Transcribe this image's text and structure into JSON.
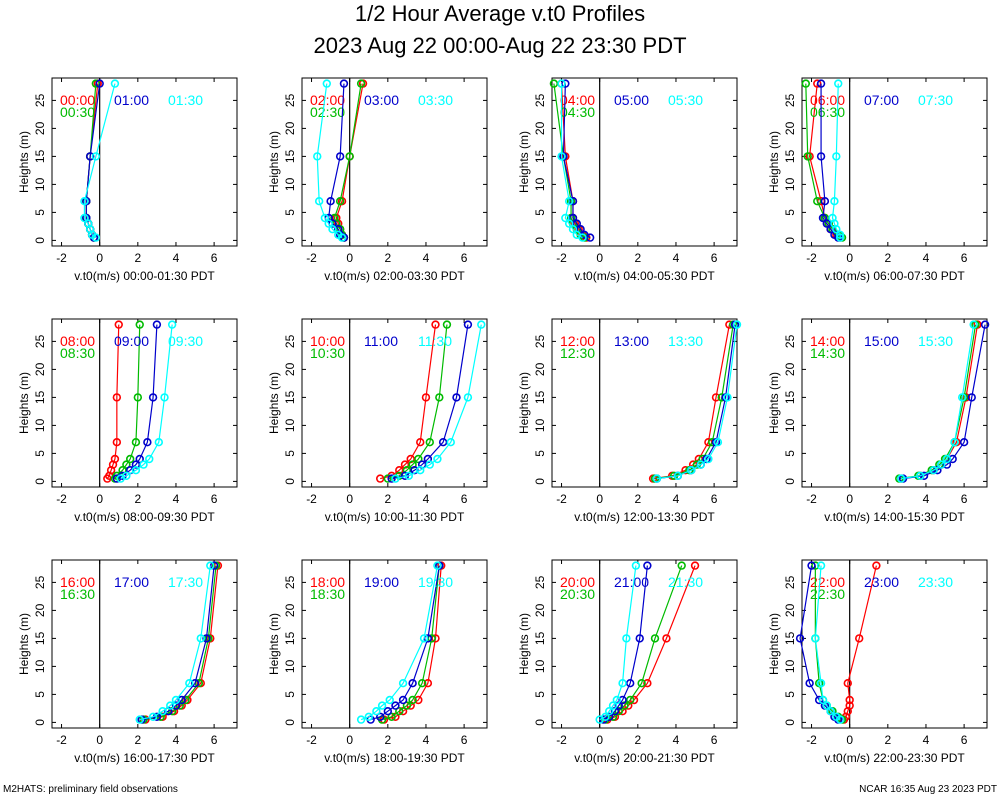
{
  "title": "1/2 Hour Average v.t0 Profiles",
  "subtitle": "2023 Aug 22 00:00-Aug 22 23:30 PDT",
  "footer_left": "M2HATS: preliminary field observations",
  "footer_right": "NCAR 16:35 Aug 23 2023 PDT",
  "colors": {
    "s1": "#ff0000",
    "s2": "#00bb00",
    "s3": "#0000cc",
    "s4": "#00ffff",
    "axis": "#000000"
  },
  "chart_data": [
    {
      "type": "line",
      "xlabel": "v.t0(m/s) 00:00-01:30 PDT",
      "ylabel": "Heights (m)",
      "xlim": [
        -2.5,
        7.2
      ],
      "ylim": [
        -1,
        29
      ],
      "xticks": [
        "-2",
        "0",
        "2",
        "4",
        "6"
      ],
      "yticks": [
        "0",
        "5",
        "10",
        "15",
        "20",
        "25"
      ],
      "heights": [
        0.5,
        1,
        2,
        3,
        4,
        7,
        15,
        28
      ],
      "series": [
        {
          "name": "00:00",
          "values": [
            -0.3,
            -0.4,
            -0.5,
            -0.6,
            -0.7,
            -0.7,
            -0.5,
            -0.1
          ]
        },
        {
          "name": "00:30",
          "values": [
            -0.3,
            -0.4,
            -0.5,
            -0.6,
            -0.7,
            -0.7,
            -0.5,
            -0.2
          ]
        },
        {
          "name": "01:00",
          "values": [
            -0.3,
            -0.4,
            -0.5,
            -0.6,
            -0.7,
            -0.7,
            -0.5,
            0.0
          ]
        },
        {
          "name": "01:30",
          "values": [
            -0.2,
            -0.4,
            -0.5,
            -0.6,
            -0.8,
            -0.8,
            -0.2,
            0.8
          ]
        }
      ]
    },
    {
      "type": "line",
      "xlabel": "v.t0(m/s) 02:00-03:30 PDT",
      "ylabel": "Heights (m)",
      "xlim": [
        -2.5,
        7.2
      ],
      "ylim": [
        -1,
        29
      ],
      "xticks": [
        "-2",
        "0",
        "2",
        "4",
        "6"
      ],
      "yticks": [
        "0",
        "5",
        "10",
        "15",
        "20",
        "25"
      ],
      "heights": [
        0.5,
        1,
        2,
        3,
        4,
        7,
        15,
        28
      ],
      "series": [
        {
          "name": "02:00",
          "values": [
            -0.3,
            -0.4,
            -0.5,
            -0.6,
            -0.7,
            -0.4,
            0.0,
            0.7
          ]
        },
        {
          "name": "02:30",
          "values": [
            -0.3,
            -0.4,
            -0.5,
            -0.7,
            -0.8,
            -0.5,
            0.0,
            0.6
          ]
        },
        {
          "name": "03:00",
          "values": [
            -0.3,
            -0.5,
            -0.6,
            -0.9,
            -1.1,
            -1.0,
            -0.5,
            -0.3
          ]
        },
        {
          "name": "03:30",
          "values": [
            -0.4,
            -0.6,
            -0.9,
            -1.1,
            -1.3,
            -1.6,
            -1.7,
            -1.2
          ]
        }
      ]
    },
    {
      "type": "line",
      "xlabel": "v.t0(m/s) 04:00-05:30 PDT",
      "ylabel": "Heights (m)",
      "xlim": [
        -2.5,
        7.2
      ],
      "ylim": [
        -1,
        29
      ],
      "xticks": [
        "-2",
        "0",
        "2",
        "4",
        "6"
      ],
      "yticks": [
        "0",
        "5",
        "10",
        "15",
        "20",
        "25"
      ],
      "heights": [
        0.5,
        1,
        2,
        3,
        4,
        7,
        15,
        28
      ],
      "series": [
        {
          "name": "04:00",
          "values": [
            -0.7,
            -0.9,
            -1.1,
            -1.3,
            -1.4,
            -1.4,
            -1.8,
            -2.0
          ]
        },
        {
          "name": "04:30",
          "values": [
            -0.8,
            -1.0,
            -1.2,
            -1.4,
            -1.5,
            -1.5,
            -1.9,
            -2.4
          ]
        },
        {
          "name": "05:00",
          "values": [
            -0.5,
            -0.8,
            -1.0,
            -1.2,
            -1.4,
            -1.4,
            -1.9,
            -1.8
          ]
        },
        {
          "name": "05:30",
          "values": [
            -0.9,
            -1.2,
            -1.4,
            -1.6,
            -1.8,
            -1.6,
            -2.0,
            -2.0
          ]
        }
      ]
    },
    {
      "type": "line",
      "xlabel": "v.t0(m/s) 06:00-07:30 PDT",
      "ylabel": "Heights (m)",
      "xlim": [
        -2.5,
        7.2
      ],
      "ylim": [
        -1,
        29
      ],
      "xticks": [
        "-2",
        "0",
        "2",
        "4",
        "6"
      ],
      "yticks": [
        "0",
        "5",
        "10",
        "15",
        "20",
        "25"
      ],
      "heights": [
        0.5,
        1,
        2,
        3,
        4,
        7,
        15,
        28
      ],
      "series": [
        {
          "name": "06:00",
          "values": [
            -0.5,
            -0.7,
            -1.0,
            -1.1,
            -1.3,
            -1.5,
            -2.1,
            -1.7
          ]
        },
        {
          "name": "06:30",
          "values": [
            -0.4,
            -0.6,
            -0.9,
            -1.1,
            -1.3,
            -1.7,
            -2.2,
            -2.3
          ]
        },
        {
          "name": "07:00",
          "values": [
            -0.6,
            -0.8,
            -1.0,
            -1.2,
            -1.4,
            -1.3,
            -1.5,
            -1.5
          ]
        },
        {
          "name": "07:30",
          "values": [
            -0.5,
            -0.5,
            -0.7,
            -0.8,
            -0.9,
            -0.8,
            -0.7,
            -0.6
          ]
        }
      ]
    },
    {
      "type": "line",
      "xlabel": "v.t0(m/s) 08:00-09:30 PDT",
      "ylabel": "Heights (m)",
      "xlim": [
        -2.5,
        7.2
      ],
      "ylim": [
        -1,
        29
      ],
      "xticks": [
        "-2",
        "0",
        "2",
        "4",
        "6"
      ],
      "yticks": [
        "0",
        "5",
        "10",
        "15",
        "20",
        "25"
      ],
      "heights": [
        0.5,
        1,
        2,
        3,
        4,
        7,
        15,
        28
      ],
      "series": [
        {
          "name": "08:00",
          "values": [
            0.4,
            0.5,
            0.6,
            0.7,
            0.8,
            0.9,
            0.9,
            1.0
          ]
        },
        {
          "name": "08:30",
          "values": [
            0.8,
            0.9,
            1.2,
            1.4,
            1.6,
            1.9,
            2.0,
            2.1
          ]
        },
        {
          "name": "09:00",
          "values": [
            0.9,
            1.2,
            1.6,
            1.9,
            2.1,
            2.5,
            2.8,
            3.0
          ]
        },
        {
          "name": "09:30",
          "values": [
            1.1,
            1.4,
            1.9,
            2.3,
            2.6,
            3.1,
            3.4,
            3.8
          ]
        }
      ]
    },
    {
      "type": "line",
      "xlabel": "v.t0(m/s) 10:00-11:30 PDT",
      "ylabel": "Heights (m)",
      "xlim": [
        -2.5,
        7.2
      ],
      "ylim": [
        -1,
        29
      ],
      "xticks": [
        "-2",
        "0",
        "2",
        "4",
        "6"
      ],
      "yticks": [
        "0",
        "5",
        "10",
        "15",
        "20",
        "25"
      ],
      "heights": [
        0.5,
        1,
        2,
        3,
        4,
        7,
        15,
        28
      ],
      "series": [
        {
          "name": "10:00",
          "values": [
            1.6,
            2.2,
            2.6,
            2.9,
            3.2,
            3.7,
            4.0,
            4.5
          ]
        },
        {
          "name": "10:30",
          "values": [
            2.0,
            2.6,
            3.0,
            3.3,
            3.6,
            4.2,
            4.7,
            5.1
          ]
        },
        {
          "name": "11:00",
          "values": [
            2.2,
            2.9,
            3.4,
            3.8,
            4.1,
            4.9,
            5.6,
            6.2
          ]
        },
        {
          "name": "11:30",
          "values": [
            2.4,
            3.1,
            3.7,
            4.2,
            4.6,
            5.3,
            6.2,
            6.9
          ]
        }
      ]
    },
    {
      "type": "line",
      "xlabel": "v.t0(m/s) 12:00-13:30 PDT",
      "ylabel": "Heights (m)",
      "xlim": [
        -2.5,
        7.2
      ],
      "ylim": [
        -1,
        29
      ],
      "xticks": [
        "-2",
        "0",
        "2",
        "4",
        "6"
      ],
      "yticks": [
        "0",
        "5",
        "10",
        "15",
        "20",
        "25"
      ],
      "heights": [
        0.5,
        1,
        2,
        3,
        4,
        7,
        15,
        28
      ],
      "series": [
        {
          "name": "12:00",
          "values": [
            2.8,
            3.8,
            4.5,
            4.9,
            5.2,
            5.7,
            6.1,
            6.8
          ]
        },
        {
          "name": "12:30",
          "values": [
            2.9,
            3.9,
            4.7,
            5.1,
            5.4,
            5.9,
            6.4,
            7.0
          ]
        },
        {
          "name": "13:00",
          "values": [
            3.0,
            4.1,
            4.8,
            5.3,
            5.6,
            6.1,
            6.6,
            7.1
          ]
        },
        {
          "name": "13:30",
          "values": [
            3.0,
            4.1,
            4.8,
            5.3,
            5.7,
            6.2,
            6.7,
            7.2
          ]
        }
      ]
    },
    {
      "type": "line",
      "xlabel": "v.t0(m/s) 14:00-15:30 PDT",
      "ylabel": "Heights (m)",
      "xlim": [
        -2.5,
        7.2
      ],
      "ylim": [
        -1,
        29
      ],
      "xticks": [
        "-2",
        "0",
        "2",
        "4",
        "6"
      ],
      "yticks": [
        "0",
        "5",
        "10",
        "15",
        "20",
        "25"
      ],
      "heights": [
        0.5,
        1,
        2,
        3,
        4,
        7,
        15,
        28
      ],
      "series": [
        {
          "name": "14:00",
          "values": [
            2.7,
            3.7,
            4.4,
            4.8,
            5.1,
            5.6,
            6.1,
            6.7
          ]
        },
        {
          "name": "14:30",
          "values": [
            2.6,
            3.6,
            4.3,
            4.7,
            5.0,
            5.5,
            6.0,
            6.6
          ]
        },
        {
          "name": "15:00",
          "values": [
            2.8,
            3.9,
            4.6,
            5.1,
            5.4,
            6.0,
            6.4,
            7.1
          ]
        },
        {
          "name": "15:30",
          "values": [
            2.7,
            3.7,
            4.4,
            4.8,
            5.1,
            5.5,
            5.9,
            6.5
          ]
        }
      ]
    },
    {
      "type": "line",
      "xlabel": "v.t0(m/s) 16:00-17:30 PDT",
      "ylabel": "Heights (m)",
      "xlim": [
        -2.5,
        7.2
      ],
      "ylim": [
        -1,
        29
      ],
      "xticks": [
        "-2",
        "0",
        "2",
        "4",
        "6"
      ],
      "yticks": [
        "0",
        "5",
        "10",
        "15",
        "20",
        "25"
      ],
      "heights": [
        0.5,
        1,
        2,
        3,
        4,
        7,
        15,
        28
      ],
      "series": [
        {
          "name": "16:00",
          "values": [
            2.4,
            3.3,
            3.9,
            4.3,
            4.6,
            5.3,
            5.8,
            6.2
          ]
        },
        {
          "name": "16:30",
          "values": [
            2.3,
            3.2,
            3.8,
            4.2,
            4.5,
            5.2,
            5.7,
            6.1
          ]
        },
        {
          "name": "17:00",
          "values": [
            2.2,
            3.0,
            3.6,
            4.0,
            4.3,
            5.0,
            5.6,
            6.0
          ]
        },
        {
          "name": "17:30",
          "values": [
            2.1,
            2.8,
            3.3,
            3.7,
            4.0,
            4.7,
            5.3,
            5.8
          ]
        }
      ]
    },
    {
      "type": "line",
      "xlabel": "v.t0(m/s) 18:00-19:30 PDT",
      "ylabel": "Heights (m)",
      "xlim": [
        -2.5,
        7.2
      ],
      "ylim": [
        -1,
        29
      ],
      "xticks": [
        "-2",
        "0",
        "2",
        "4",
        "6"
      ],
      "yticks": [
        "0",
        "5",
        "10",
        "15",
        "20",
        "25"
      ],
      "heights": [
        0.5,
        1,
        2,
        3,
        4,
        7,
        15,
        28
      ],
      "series": [
        {
          "name": "18:00",
          "values": [
            1.8,
            2.4,
            2.8,
            3.2,
            3.6,
            4.1,
            4.5,
            4.8
          ]
        },
        {
          "name": "18:30",
          "values": [
            1.7,
            2.2,
            2.6,
            3.0,
            3.3,
            3.8,
            4.3,
            4.7
          ]
        },
        {
          "name": "19:00",
          "values": [
            1.1,
            1.6,
            2.0,
            2.4,
            2.8,
            3.3,
            4.1,
            4.7
          ]
        },
        {
          "name": "19:30",
          "values": [
            0.6,
            1.0,
            1.4,
            1.7,
            2.1,
            2.8,
            3.9,
            4.6
          ]
        }
      ]
    },
    {
      "type": "line",
      "xlabel": "v.t0(m/s) 20:00-21:30 PDT",
      "ylabel": "Heights (m)",
      "xlim": [
        -2.5,
        7.2
      ],
      "ylim": [
        -1,
        29
      ],
      "xticks": [
        "-2",
        "0",
        "2",
        "4",
        "6"
      ],
      "yticks": [
        "0",
        "5",
        "10",
        "15",
        "20",
        "25"
      ],
      "heights": [
        0.5,
        1,
        2,
        3,
        4,
        7,
        15,
        28
      ],
      "series": [
        {
          "name": "20:00",
          "values": [
            0.4,
            0.8,
            1.2,
            1.5,
            1.8,
            2.5,
            3.5,
            5.0
          ]
        },
        {
          "name": "20:30",
          "values": [
            0.3,
            0.7,
            1.0,
            1.3,
            1.6,
            2.2,
            2.9,
            4.3
          ]
        },
        {
          "name": "21:00",
          "values": [
            0.2,
            0.5,
            0.8,
            1.0,
            1.2,
            1.6,
            2.1,
            2.5
          ]
        },
        {
          "name": "21:30",
          "values": [
            0.0,
            0.3,
            0.5,
            0.7,
            0.9,
            1.2,
            1.4,
            1.9
          ]
        }
      ]
    },
    {
      "type": "line",
      "xlabel": "v.t0(m/s) 22:00-23:30 PDT",
      "ylabel": "Heights (m)",
      "xlim": [
        -2.5,
        7.2
      ],
      "ylim": [
        -1,
        29
      ],
      "xticks": [
        "-2",
        "0",
        "2",
        "4",
        "6"
      ],
      "yticks": [
        "0",
        "5",
        "10",
        "15",
        "20",
        "25"
      ],
      "heights": [
        0.5,
        1,
        2,
        3,
        4,
        7,
        15,
        28
      ],
      "series": [
        {
          "name": "22:00",
          "values": [
            -0.3,
            -0.2,
            -0.1,
            0.0,
            0.0,
            -0.1,
            0.5,
            1.4
          ]
        },
        {
          "name": "22:30",
          "values": [
            -0.4,
            -0.6,
            -0.9,
            -1.2,
            -1.4,
            -1.6,
            -1.8,
            -1.8
          ]
        },
        {
          "name": "23:00",
          "values": [
            -0.6,
            -0.8,
            -1.0,
            -1.3,
            -1.6,
            -2.1,
            -2.6,
            -2.0
          ]
        },
        {
          "name": "23:30",
          "values": [
            -0.5,
            -0.7,
            -1.0,
            -1.2,
            -1.4,
            -1.5,
            -1.8,
            -1.5
          ]
        }
      ]
    }
  ]
}
